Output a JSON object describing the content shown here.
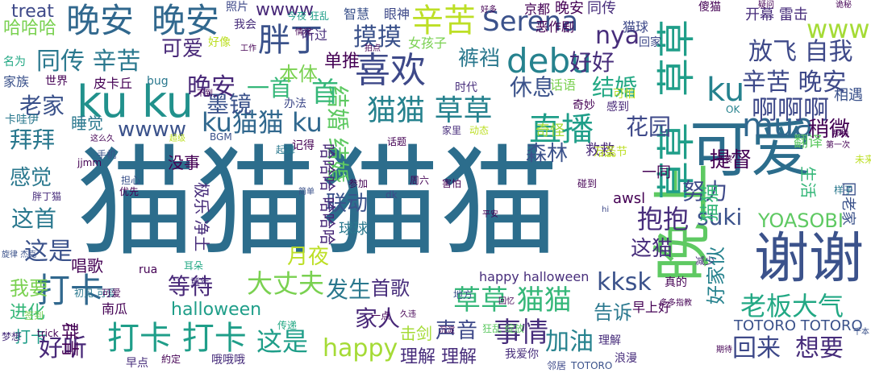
{
  "palette": [
    "#440154",
    "#46327e",
    "#365c8d",
    "#277f8e",
    "#1fa187",
    "#4ac16d",
    "#a0da39",
    "#fde725"
  ],
  "words": [
    {
      "text": "猫猫",
      "color": "#2c6d8c"
    },
    {
      "text": "猫猫",
      "color": "#2c6d8c"
    },
    {
      "text": "可爱",
      "color": "#2c6d8c"
    },
    {
      "text": "谢谢",
      "color": "#3b528b"
    },
    {
      "text": "晚上",
      "color": "#5ec962"
    },
    {
      "text": "晚安",
      "color": "#31688e"
    },
    {
      "text": "晚安",
      "color": "#31688e"
    },
    {
      "text": "ku ku",
      "color": "#21918c"
    },
    {
      "text": "喜欢",
      "color": "#3e4989"
    },
    {
      "text": "胖丁",
      "color": "#3b528b"
    },
    {
      "text": "debu",
      "color": "#26828e"
    },
    {
      "text": "直播",
      "color": "#1f9e89"
    },
    {
      "text": "草草",
      "color": "#1f9e89"
    },
    {
      "text": "草草",
      "color": "#1f9e89"
    },
    {
      "text": "打卡",
      "color": "#31688e"
    },
    {
      "text": "打卡 打卡",
      "color": "#1f9e89"
    },
    {
      "text": "辛苦",
      "color": "#bddf26"
    },
    {
      "text": "辛苦 晚安",
      "color": "#3e4989"
    },
    {
      "text": "同传 辛苦",
      "color": "#2a788e"
    },
    {
      "text": "可爱",
      "color": "#482878"
    },
    {
      "text": "猫猫 草草",
      "color": "#26828e"
    },
    {
      "text": "大丈夫",
      "color": "#7ad151"
    },
    {
      "text": "草草 猫猫",
      "color": "#35b779"
    },
    {
      "text": "老板大气",
      "color": "#22a884"
    },
    {
      "text": "首歌",
      "color": "#472d7b"
    },
    {
      "text": "事情",
      "color": "#472d7b"
    },
    {
      "text": "这是",
      "color": "#1f9e89"
    },
    {
      "text": "happy",
      "color": "#a5db36"
    },
    {
      "text": "mua",
      "color": "#31688e"
    },
    {
      "text": "ku猫猫 ku",
      "color": "#31688e"
    },
    {
      "text": "结婚",
      "color": "#22a884"
    },
    {
      "text": "结婚 结婚",
      "color": "#5ec962"
    },
    {
      "text": "放飞 自我",
      "color": "#3e4989"
    },
    {
      "text": "Serena",
      "color": "#3b528b"
    },
    {
      "text": "摸摸",
      "color": "#3b528b"
    },
    {
      "text": "nya",
      "color": "#472d7b"
    },
    {
      "text": "www",
      "color": "#a5db36"
    },
    {
      "text": "wwww",
      "color": "#482878"
    },
    {
      "text": "wwww",
      "color": "#3b528b"
    },
    {
      "text": "啊啊啊",
      "color": "#3e4989"
    },
    {
      "text": "ku",
      "color": "#26828e"
    },
    {
      "text": "首",
      "color": "#35b779"
    },
    {
      "text": "一首",
      "color": "#35b779"
    },
    {
      "text": "晚安",
      "color": "#482878"
    },
    {
      "text": "好好",
      "color": "#472d7b"
    },
    {
      "text": "联动",
      "color": "#3b528b"
    },
    {
      "text": "抱抱",
      "color": "#472d7b"
    },
    {
      "text": "拜拜",
      "color": "#2a788e"
    },
    {
      "text": "睡觉",
      "color": "#2a788e"
    },
    {
      "text": "花园",
      "color": "#3e4989"
    },
    {
      "text": "森林",
      "color": "#3b528b"
    },
    {
      "text": "休息",
      "color": "#3b528b"
    },
    {
      "text": "提督",
      "color": "#440154"
    },
    {
      "text": "稍微",
      "color": "#440154"
    },
    {
      "text": "努力",
      "color": "#3e4989"
    },
    {
      "text": "suki",
      "color": "#3b528b"
    },
    {
      "text": "YOASOBI",
      "color": "#5ec962"
    },
    {
      "text": "这猫",
      "color": "#472d7b"
    },
    {
      "text": "猫猫",
      "color": "#35b779"
    },
    {
      "text": "好家伙",
      "color": "#26828e"
    },
    {
      "text": "halloween",
      "color": "#1f9e89"
    },
    {
      "text": "等待",
      "color": "#482878"
    },
    {
      "text": "这首",
      "color": "#2a788e"
    },
    {
      "text": "感觉",
      "color": "#2a788e"
    },
    {
      "text": "我要",
      "color": "#7ad151"
    },
    {
      "text": "这是",
      "color": "#3b528b"
    },
    {
      "text": "打卡",
      "color": "#1f9e89"
    },
    {
      "text": "好听",
      "color": "#482878"
    },
    {
      "text": "进化",
      "color": "#35b779"
    },
    {
      "text": "群青",
      "color": "#440154"
    },
    {
      "text": "月夜",
      "color": "#bddf26"
    },
    {
      "text": "声音",
      "color": "#3e4989"
    },
    {
      "text": "家人",
      "color": "#482878"
    },
    {
      "text": "发生",
      "color": "#2a788e"
    },
    {
      "text": "告诉",
      "color": "#2a788e"
    },
    {
      "text": "kksk",
      "color": "#3b528b"
    },
    {
      "text": "理解 理解",
      "color": "#472d7b"
    },
    {
      "text": "加油",
      "color": "#26828e"
    },
    {
      "text": "回来",
      "color": "#3e4989"
    },
    {
      "text": "想要",
      "color": "#472d7b"
    },
    {
      "text": "TOTORO TOTORO",
      "color": "#3b528b"
    },
    {
      "text": "happy halloween",
      "color": "#472d7b"
    },
    {
      "text": "击剑",
      "color": "#a5db36"
    },
    {
      "text": "墨镜",
      "color": "#3b528b"
    },
    {
      "text": "本体",
      "color": "#7ad151"
    },
    {
      "text": "单推",
      "color": "#440154"
    },
    {
      "text": "裤裆",
      "color": "#2a788e"
    },
    {
      "text": "老家",
      "color": "#3b528b"
    },
    {
      "text": "treat",
      "color": "#3e4989"
    },
    {
      "text": "哈哈哈",
      "color": "#7ad151"
    },
    {
      "text": "奇怪",
      "color": "#a5db36"
    },
    {
      "text": "救救",
      "color": "#482878"
    },
    {
      "text": "万圣节",
      "color": "#bddf26"
    },
    {
      "text": "没事",
      "color": "#440154"
    },
    {
      "text": "哈哈哈 哈哈哈",
      "color": "#482878"
    },
    {
      "text": "极乐 净土",
      "color": "#472d7b"
    },
    {
      "text": "球球",
      "color": "#2a788e"
    },
    {
      "text": "唱歌",
      "color": "#440154"
    },
    {
      "text": "一同",
      "color": "#440154"
    },
    {
      "text": "awsl",
      "color": "#440154"
    },
    {
      "text": "生活",
      "color": "#35b779"
    },
    {
      "text": "回老家",
      "color": "#3b528b"
    },
    {
      "text": "南瓜",
      "color": "#440154"
    },
    {
      "text": "早上好",
      "color": "#440154"
    },
    {
      "text": "开幕 雷击",
      "color": "#472d7b"
    },
    {
      "text": "猫球",
      "color": "#3e4989"
    },
    {
      "text": "京都",
      "color": "#440154"
    },
    {
      "text": "晚安",
      "color": "#440154"
    },
    {
      "text": "同传",
      "color": "#472d7b"
    },
    {
      "text": "智慧",
      "color": "#3b528b"
    },
    {
      "text": "眼神",
      "color": "#3e4989"
    },
    {
      "text": "女孩子",
      "color": "#7ad151"
    },
    {
      "text": "听过",
      "color": "#472d7b"
    },
    {
      "text": "恶作剧",
      "color": "#440154"
    },
    {
      "text": "回家",
      "color": "#3e4989"
    },
    {
      "text": "翻译",
      "color": "#5ec962"
    },
    {
      "text": "相遇",
      "color": "#3b528b"
    },
    {
      "text": "话语",
      "color": "#7ad151"
    },
    {
      "text": "时代",
      "color": "#472d7b"
    },
    {
      "text": "办法",
      "color": "#3e4989"
    },
    {
      "text": "世界",
      "color": "#440154"
    },
    {
      "text": "家族",
      "color": "#3b528b"
    },
    {
      "text": "名为",
      "color": "#22a884"
    },
    {
      "text": "皮卡丘",
      "color": "#440154"
    },
    {
      "text": "bug",
      "color": "#2a788e"
    },
    {
      "text": "卡哇伊",
      "color": "#2a788e"
    },
    {
      "text": "照片",
      "color": "#3e4989"
    },
    {
      "text": "我会",
      "color": "#472d7b"
    },
    {
      "text": "好像",
      "color": "#bddf26"
    },
    {
      "text": "今夜 狂乱",
      "color": "#1f9e89"
    },
    {
      "text": "傻猫",
      "color": "#440154"
    },
    {
      "text": "奇妙",
      "color": "#440154"
    },
    {
      "text": "感到",
      "color": "#482878"
    },
    {
      "text": "可怕",
      "color": "#bddf26"
    },
    {
      "text": "记得",
      "color": "#440154"
    },
    {
      "text": "起舞",
      "color": "#2a788e"
    },
    {
      "text": "BGM",
      "color": "#3b528b"
    },
    {
      "text": "动态",
      "color": "#bddf26"
    },
    {
      "text": "家里",
      "color": "#472d7b"
    },
    {
      "text": "话题",
      "color": "#440154"
    },
    {
      "text": "担心",
      "color": "#3b528b"
    },
    {
      "text": "优先",
      "color": "#440154"
    },
    {
      "text": "参加",
      "color": "#440154"
    },
    {
      "text": "周六",
      "color": "#440154"
    },
    {
      "text": "害怕",
      "color": "#440154"
    },
    {
      "text": "碰到",
      "color": "#440154"
    },
    {
      "text": "样子",
      "color": "#2a788e"
    },
    {
      "text": "未来",
      "color": "#bddf26"
    },
    {
      "text": "第一次",
      "color": "#440154"
    },
    {
      "text": "那种",
      "color": "#440154"
    },
    {
      "text": "地方",
      "color": "#3b528b"
    },
    {
      "text": "真的",
      "color": "#440154"
    },
    {
      "text": "减少",
      "color": "#472d7b"
    },
    {
      "text": "多多指教",
      "color": "#440154"
    },
    {
      "text": "狂乱 绽放",
      "color": "#5ec962"
    },
    {
      "text": "理解",
      "color": "#472d7b"
    },
    {
      "text": "浪漫",
      "color": "#472d7b"
    },
    {
      "text": "我爱你",
      "color": "#472d7b"
    },
    {
      "text": "邻居",
      "color": "#3e4989"
    },
    {
      "text": "TOTORO",
      "color": "#3b528b"
    },
    {
      "text": "哦哦哦",
      "color": "#472d7b"
    },
    {
      "text": "約定",
      "color": "#440154"
    },
    {
      "text": "早点",
      "color": "#472d7b"
    },
    {
      "text": "梦想",
      "color": "#472d7b"
    },
    {
      "text": "签到",
      "color": "#7ad151"
    },
    {
      "text": "初见 可爱",
      "color": "#2a788e"
    },
    {
      "text": "rua",
      "color": "#440154"
    },
    {
      "text": "trick",
      "color": "#440154"
    },
    {
      "text": "一点",
      "color": "#440154"
    },
    {
      "text": "传递",
      "color": "#22a884"
    },
    {
      "text": "耳朵",
      "color": "#22a884"
    },
    {
      "text": "童年",
      "color": "#472d7b"
    },
    {
      "text": "手机",
      "color": "#3b528b"
    },
    {
      "text": "jjmm",
      "color": "#440154"
    },
    {
      "text": "dk",
      "color": "#3e4989"
    },
    {
      "text": "hi",
      "color": "#3e4989"
    },
    {
      "text": "mao",
      "color": "#bddf26"
    },
    {
      "text": "不到",
      "color": "#440154"
    },
    {
      "text": "工作",
      "color": "#440154"
    },
    {
      "text": "好多",
      "color": "#440154"
    },
    {
      "text": "情况",
      "color": "#440154"
    },
    {
      "text": "拍点",
      "color": "#440154"
    },
    {
      "text": "简单",
      "color": "#3b528b"
    },
    {
      "text": "超级",
      "color": "#bddf26"
    },
    {
      "text": "这么久",
      "color": "#440154"
    },
    {
      "text": "平安",
      "color": "#440154"
    },
    {
      "text": "疑问",
      "color": "#440154"
    },
    {
      "text": "OK",
      "color": "#26828e"
    },
    {
      "text": "久违",
      "color": "#440154"
    },
    {
      "text": "胖丁猫",
      "color": "#472d7b"
    },
    {
      "text": "旋律 杰克",
      "color": "#3b528b"
    },
    {
      "text": "诡秘",
      "color": "#440154"
    },
    {
      "text": "千本",
      "color": "#3b528b"
    },
    {
      "text": "期待",
      "color": "#440154"
    },
    {
      "text": "老婆",
      "color": "#440154"
    },
    {
      "text": "沉淀",
      "color": "#440154"
    },
    {
      "text": "回忆",
      "color": "#440154"
    },
    {
      "text": "可爱",
      "color": "#440154"
    }
  ]
}
